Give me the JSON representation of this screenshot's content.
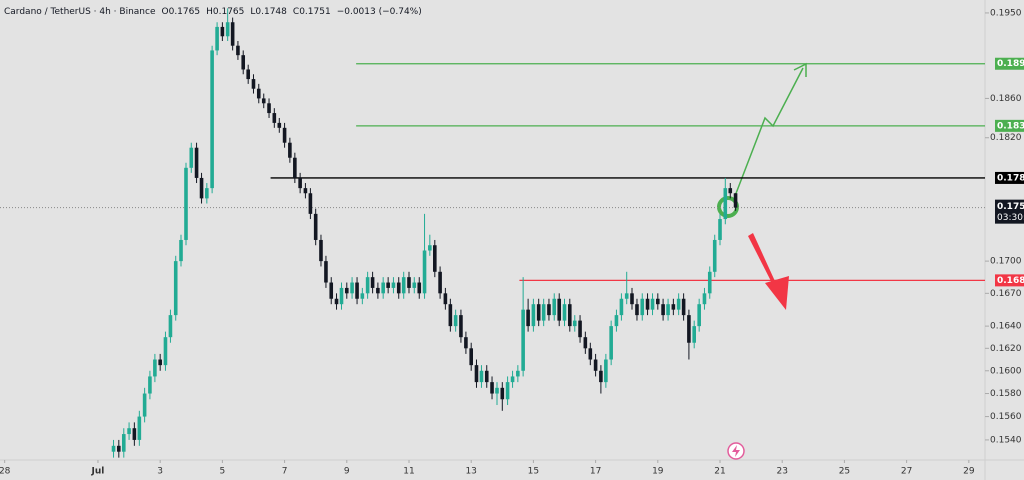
{
  "chart_data": {
    "type": "candlestick",
    "title": "Cardano / TetherUS · 4h · Binance",
    "ohlc_prefixes": [
      "O",
      "H",
      "L",
      "C"
    ],
    "change": "−0.0013 (−0.74%)",
    "log_scale": true,
    "grid": false,
    "up_color": "#22ab94",
    "down_color": "#131722",
    "xlim": [
      -2.15,
      29.52
    ],
    "ylim": [
      0.1523,
      0.1964
    ],
    "xticks": [
      {
        "value": -2,
        "label": "28"
      },
      {
        "value": 1,
        "label": "Jul"
      },
      3,
      5,
      7,
      9,
      11,
      13,
      15,
      17,
      19,
      21,
      23,
      25,
      27,
      29
    ],
    "yticks": [
      {
        "value": 0.195,
        "label": "0.1950"
      },
      {
        "value": 0.186,
        "label": "0.1860"
      },
      {
        "value": 0.182,
        "label": "0.1820"
      },
      {
        "value": 0.17,
        "label": "0.1700"
      },
      {
        "value": 0.167,
        "label": "0.1670"
      },
      {
        "value": 0.164,
        "label": "0.1640"
      },
      {
        "value": 0.162,
        "label": "0.1620"
      },
      {
        "value": 0.16,
        "label": "0.1600"
      },
      {
        "value": 0.158,
        "label": "0.1580"
      },
      {
        "value": 0.156,
        "label": "0.1560"
      },
      {
        "value": 0.154,
        "label": "0.1540"
      }
    ],
    "levels": [
      {
        "value": 0.1896,
        "x_start": 9.3,
        "color": "#4caf50"
      },
      {
        "value": 0.1832,
        "x_start": 9.3,
        "color": "#4caf50"
      },
      {
        "value": 0.178,
        "x_start": 6.55,
        "color": "#000000"
      },
      {
        "value": 0.1682,
        "x_start": 14.55,
        "color": "#f23645"
      }
    ],
    "last_price": 0.1751,
    "countdown": "03:30:",
    "x": [
      1.5,
      1.67,
      1.83,
      2,
      2.17,
      2.33,
      2.5,
      2.67,
      2.83,
      3,
      3.17,
      3.33,
      3.5,
      3.67,
      3.83,
      4,
      4.17,
      4.33,
      4.5,
      4.67,
      4.83,
      5,
      5.17,
      5.33,
      5.5,
      5.67,
      5.83,
      6,
      6.17,
      6.33,
      6.5,
      6.67,
      6.83,
      7,
      7.17,
      7.33,
      7.5,
      7.67,
      7.83,
      8,
      8.17,
      8.33,
      8.5,
      8.67,
      8.83,
      9,
      9.17,
      9.33,
      9.5,
      9.67,
      9.83,
      10,
      10.17,
      10.33,
      10.5,
      10.67,
      10.83,
      11,
      11.17,
      11.33,
      11.5,
      11.67,
      11.83,
      12,
      12.17,
      12.33,
      12.5,
      12.67,
      12.83,
      13,
      13.17,
      13.33,
      13.5,
      13.67,
      13.83,
      14,
      14.17,
      14.33,
      14.5,
      14.67,
      14.83,
      15,
      15.17,
      15.33,
      15.5,
      15.67,
      15.83,
      16,
      16.17,
      16.33,
      16.5,
      16.67,
      16.83,
      17,
      17.17,
      17.33,
      17.5,
      17.67,
      17.83,
      18,
      18.17,
      18.33,
      18.5,
      18.67,
      18.83,
      19,
      19.17,
      19.33,
      19.5,
      19.67,
      19.83,
      20,
      20.17,
      20.33,
      20.5,
      20.67,
      20.83,
      21,
      21.17,
      21.33,
      21.5
    ],
    "open": [
      0.153,
      0.1535,
      0.153,
      0.1545,
      0.155,
      0.154,
      0.156,
      0.158,
      0.1595,
      0.161,
      0.1605,
      0.163,
      0.165,
      0.17,
      0.172,
      0.179,
      0.181,
      0.178,
      0.176,
      0.177,
      0.191,
      0.1935,
      0.1925,
      0.194,
      0.1915,
      0.1905,
      0.189,
      0.188,
      0.187,
      0.186,
      0.1855,
      0.1845,
      0.1835,
      0.183,
      0.1815,
      0.18,
      0.178,
      0.177,
      0.1765,
      0.1745,
      0.172,
      0.17,
      0.168,
      0.1665,
      0.166,
      0.1675,
      0.167,
      0.168,
      0.1665,
      0.167,
      0.1685,
      0.1675,
      0.167,
      0.168,
      0.1675,
      0.168,
      0.167,
      0.1685,
      0.1675,
      0.168,
      0.167,
      0.171,
      0.1715,
      0.169,
      0.167,
      0.166,
      0.164,
      0.165,
      0.163,
      0.162,
      0.1605,
      0.159,
      0.16,
      0.159,
      0.158,
      0.1585,
      0.1575,
      0.159,
      0.1595,
      0.16,
      0.1655,
      0.164,
      0.166,
      0.1645,
      0.166,
      0.165,
      0.1665,
      0.1645,
      0.166,
      0.164,
      0.1645,
      0.163,
      0.162,
      0.161,
      0.16,
      0.159,
      0.161,
      0.164,
      0.165,
      0.1665,
      0.167,
      0.166,
      0.165,
      0.1665,
      0.1655,
      0.1665,
      0.166,
      0.165,
      0.166,
      0.1655,
      0.1665,
      0.165,
      0.1625,
      0.164,
      0.166,
      0.167,
      0.169,
      0.172,
      0.174,
      0.177,
      0.1765
    ],
    "high": [
      0.154,
      0.154,
      0.155,
      0.1555,
      0.1555,
      0.1565,
      0.1585,
      0.16,
      0.1615,
      0.1615,
      0.1635,
      0.1655,
      0.1705,
      0.1725,
      0.1795,
      0.1815,
      0.1815,
      0.1785,
      0.1775,
      0.1915,
      0.194,
      0.194,
      0.1955,
      0.1945,
      0.192,
      0.191,
      0.1895,
      0.1885,
      0.1875,
      0.1865,
      0.186,
      0.185,
      0.184,
      0.1835,
      0.182,
      0.1805,
      0.1785,
      0.1775,
      0.177,
      0.175,
      0.1725,
      0.1705,
      0.1685,
      0.167,
      0.168,
      0.168,
      0.1685,
      0.1685,
      0.1675,
      0.169,
      0.169,
      0.168,
      0.1685,
      0.1685,
      0.1685,
      0.1685,
      0.169,
      0.169,
      0.1685,
      0.1685,
      0.1745,
      0.1725,
      0.172,
      0.1695,
      0.1675,
      0.1665,
      0.1655,
      0.1655,
      0.1635,
      0.1625,
      0.161,
      0.1605,
      0.1605,
      0.1595,
      0.159,
      0.159,
      0.1595,
      0.16,
      0.1605,
      0.1685,
      0.1665,
      0.1665,
      0.1665,
      0.1665,
      0.1665,
      0.167,
      0.167,
      0.1665,
      0.1665,
      0.165,
      0.165,
      0.1635,
      0.1625,
      0.1615,
      0.1605,
      0.1615,
      0.1645,
      0.1655,
      0.167,
      0.169,
      0.1675,
      0.1665,
      0.167,
      0.167,
      0.167,
      0.167,
      0.1665,
      0.1665,
      0.1665,
      0.167,
      0.167,
      0.1655,
      0.1645,
      0.1665,
      0.1675,
      0.1695,
      0.1725,
      0.1745,
      0.178,
      0.1775,
      0.1765
    ],
    "low": [
      0.1525,
      0.1525,
      0.1525,
      0.154,
      0.1535,
      0.1535,
      0.1555,
      0.1575,
      0.159,
      0.16,
      0.16,
      0.1625,
      0.1645,
      0.1695,
      0.1715,
      0.1785,
      0.1775,
      0.1755,
      0.1755,
      0.1765,
      0.1905,
      0.192,
      0.192,
      0.191,
      0.19,
      0.1885,
      0.1875,
      0.1865,
      0.1855,
      0.185,
      0.184,
      0.183,
      0.1825,
      0.181,
      0.1795,
      0.1775,
      0.1765,
      0.176,
      0.174,
      0.1715,
      0.1695,
      0.1675,
      0.166,
      0.1655,
      0.1655,
      0.1665,
      0.1665,
      0.166,
      0.166,
      0.1665,
      0.167,
      0.1665,
      0.1665,
      0.167,
      0.167,
      0.1665,
      0.1665,
      0.167,
      0.167,
      0.1665,
      0.1665,
      0.1705,
      0.1685,
      0.1665,
      0.1655,
      0.1635,
      0.1635,
      0.1625,
      0.1615,
      0.16,
      0.1585,
      0.1585,
      0.1585,
      0.1575,
      0.157,
      0.1565,
      0.157,
      0.1585,
      0.159,
      0.1595,
      0.1635,
      0.1635,
      0.164,
      0.164,
      0.1645,
      0.1645,
      0.164,
      0.164,
      0.1635,
      0.1635,
      0.1625,
      0.1615,
      0.1605,
      0.1595,
      0.158,
      0.1585,
      0.1605,
      0.1635,
      0.1645,
      0.166,
      0.1655,
      0.1645,
      0.1645,
      0.165,
      0.165,
      0.1655,
      0.1645,
      0.1645,
      0.165,
      0.165,
      0.1645,
      0.161,
      0.162,
      0.1635,
      0.1655,
      0.1665,
      0.1685,
      0.1715,
      0.1735,
      0.176,
      0.1748
    ],
    "close": [
      0.1535,
      0.153,
      0.1545,
      0.155,
      0.154,
      0.156,
      0.158,
      0.1595,
      0.161,
      0.1605,
      0.163,
      0.165,
      0.17,
      0.172,
      0.179,
      0.181,
      0.178,
      0.176,
      0.177,
      0.191,
      0.1935,
      0.1925,
      0.194,
      0.1915,
      0.1905,
      0.189,
      0.188,
      0.187,
      0.186,
      0.1855,
      0.1845,
      0.1835,
      0.183,
      0.1815,
      0.18,
      0.178,
      0.177,
      0.1765,
      0.1745,
      0.172,
      0.17,
      0.168,
      0.1665,
      0.166,
      0.1675,
      0.167,
      0.168,
      0.1665,
      0.167,
      0.1685,
      0.1675,
      0.167,
      0.168,
      0.1675,
      0.168,
      0.167,
      0.1685,
      0.1675,
      0.168,
      0.167,
      0.171,
      0.1715,
      0.169,
      0.167,
      0.166,
      0.164,
      0.165,
      0.163,
      0.162,
      0.1605,
      0.159,
      0.16,
      0.159,
      0.158,
      0.1585,
      0.1575,
      0.159,
      0.1595,
      0.16,
      0.1655,
      0.164,
      0.166,
      0.1645,
      0.166,
      0.165,
      0.1665,
      0.1645,
      0.166,
      0.164,
      0.1645,
      0.163,
      0.162,
      0.161,
      0.16,
      0.159,
      0.161,
      0.164,
      0.165,
      0.1665,
      0.167,
      0.166,
      0.165,
      0.1665,
      0.1655,
      0.1665,
      0.166,
      0.165,
      0.166,
      0.1655,
      0.1665,
      0.165,
      0.1625,
      0.164,
      0.166,
      0.167,
      0.169,
      0.172,
      0.174,
      0.177,
      0.1765,
      0.1751
    ]
  }
}
